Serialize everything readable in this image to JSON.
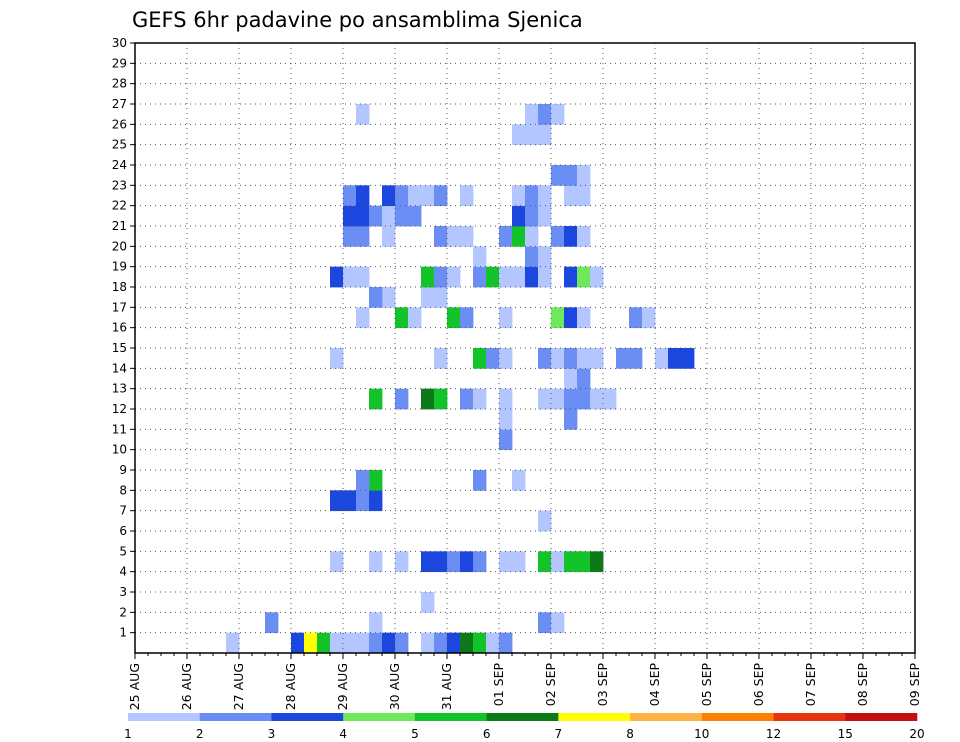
{
  "chart_data": {
    "type": "heatmap",
    "title": "GEFS 6hr padavine po ansamblima Sjenica",
    "xlabel": "",
    "ylabel": "",
    "y_ticks": [
      "1",
      "2",
      "3",
      "4",
      "5",
      "6",
      "7",
      "8",
      "9",
      "10",
      "11",
      "12",
      "13",
      "14",
      "15",
      "16",
      "17",
      "18",
      "19",
      "20",
      "21",
      "22",
      "23",
      "24",
      "25",
      "26",
      "27",
      "28",
      "29",
      "30"
    ],
    "x_ticks": [
      "25 AUG",
      "26 AUG",
      "27 AUG",
      "28 AUG",
      "29 AUG",
      "30 AUG",
      "31 AUG",
      "01 SEP",
      "02 SEP",
      "03 SEP",
      "04 SEP",
      "05 SEP",
      "06 SEP",
      "07 SEP",
      "08 SEP",
      "09 SEP"
    ],
    "x_range": [
      0,
      60
    ],
    "y_range": [
      0,
      30
    ],
    "grid": true,
    "colorbar": {
      "labels": [
        "1",
        "2",
        "3",
        "4",
        "5",
        "6",
        "7",
        "8",
        "10",
        "12",
        "15",
        "20"
      ],
      "colors": [
        "#b3c6ff",
        "#6b8ef5",
        "#1b47de",
        "#6ee85c",
        "#12c42a",
        "#0d7a1a",
        "#ffff00",
        "#ffb347",
        "#ff7f00",
        "#e83510",
        "#c41010",
        "#6e0000"
      ]
    },
    "note_cells": "each cell: [time step (6h index from 25 AUG 00Z), ensemble member, colour class index]",
    "cells": [
      [
        7,
        0,
        0
      ],
      [
        12,
        0,
        2
      ],
      [
        13,
        0,
        6
      ],
      [
        14,
        0,
        4
      ],
      [
        15,
        0,
        0
      ],
      [
        16,
        0,
        0
      ],
      [
        17,
        0,
        0
      ],
      [
        18,
        0,
        1
      ],
      [
        19,
        0,
        2
      ],
      [
        20,
        0,
        1
      ],
      [
        22,
        0,
        0
      ],
      [
        23,
        0,
        1
      ],
      [
        24,
        0,
        2
      ],
      [
        25,
        0,
        5
      ],
      [
        26,
        0,
        4
      ],
      [
        27,
        0,
        0
      ],
      [
        28,
        0,
        1
      ],
      [
        10,
        1,
        1
      ],
      [
        18,
        1,
        0
      ],
      [
        31,
        1,
        1
      ],
      [
        32,
        1,
        0
      ],
      [
        22,
        2,
        0
      ],
      [
        15,
        4,
        0
      ],
      [
        18,
        4,
        0
      ],
      [
        20,
        4,
        0
      ],
      [
        22,
        4,
        2
      ],
      [
        23,
        4,
        2
      ],
      [
        24,
        4,
        1
      ],
      [
        25,
        4,
        2
      ],
      [
        26,
        4,
        1
      ],
      [
        28,
        4,
        0
      ],
      [
        29,
        4,
        0
      ],
      [
        31,
        4,
        4
      ],
      [
        32,
        4,
        0
      ],
      [
        33,
        4,
        4
      ],
      [
        34,
        4,
        4
      ],
      [
        35,
        4,
        5
      ],
      [
        31,
        6,
        0
      ],
      [
        15,
        7,
        2
      ],
      [
        16,
        7,
        2
      ],
      [
        17,
        7,
        1
      ],
      [
        18,
        7,
        2
      ],
      [
        18,
        8,
        4
      ],
      [
        17,
        8,
        1
      ],
      [
        26,
        8,
        1
      ],
      [
        29,
        8,
        0
      ],
      [
        28,
        10,
        1
      ],
      [
        28,
        11,
        0
      ],
      [
        33,
        11,
        1
      ],
      [
        18,
        12,
        4
      ],
      [
        20,
        12,
        1
      ],
      [
        22,
        12,
        5
      ],
      [
        23,
        12,
        4
      ],
      [
        25,
        12,
        1
      ],
      [
        26,
        12,
        0
      ],
      [
        28,
        12,
        0
      ],
      [
        31,
        12,
        0
      ],
      [
        32,
        12,
        0
      ],
      [
        33,
        12,
        1
      ],
      [
        34,
        12,
        1
      ],
      [
        35,
        12,
        0
      ],
      [
        36,
        12,
        0
      ],
      [
        33,
        13,
        0
      ],
      [
        34,
        13,
        1
      ],
      [
        15,
        14,
        0
      ],
      [
        23,
        14,
        0
      ],
      [
        26,
        14,
        4
      ],
      [
        27,
        14,
        1
      ],
      [
        28,
        14,
        0
      ],
      [
        31,
        14,
        1
      ],
      [
        32,
        14,
        0
      ],
      [
        33,
        14,
        1
      ],
      [
        34,
        14,
        0
      ],
      [
        35,
        14,
        0
      ],
      [
        37,
        14,
        1
      ],
      [
        38,
        14,
        1
      ],
      [
        40,
        14,
        0
      ],
      [
        41,
        14,
        2
      ],
      [
        42,
        14,
        2
      ],
      [
        17,
        16,
        0
      ],
      [
        20,
        16,
        4
      ],
      [
        21,
        16,
        0
      ],
      [
        24,
        16,
        4
      ],
      [
        25,
        16,
        1
      ],
      [
        28,
        16,
        0
      ],
      [
        32,
        16,
        3
      ],
      [
        33,
        16,
        2
      ],
      [
        34,
        16,
        0
      ],
      [
        38,
        16,
        1
      ],
      [
        39,
        16,
        0
      ],
      [
        19,
        17,
        0
      ],
      [
        18,
        17,
        1
      ],
      [
        22,
        17,
        0
      ],
      [
        23,
        17,
        0
      ],
      [
        15,
        18,
        2
      ],
      [
        16,
        18,
        0
      ],
      [
        17,
        18,
        0
      ],
      [
        22,
        18,
        4
      ],
      [
        23,
        18,
        1
      ],
      [
        24,
        18,
        0
      ],
      [
        26,
        18,
        1
      ],
      [
        27,
        18,
        4
      ],
      [
        28,
        18,
        0
      ],
      [
        29,
        18,
        0
      ],
      [
        30,
        18,
        2
      ],
      [
        31,
        18,
        0
      ],
      [
        33,
        18,
        2
      ],
      [
        34,
        18,
        3
      ],
      [
        35,
        18,
        0
      ],
      [
        26,
        19,
        0
      ],
      [
        30,
        19,
        1
      ],
      [
        31,
        19,
        0
      ],
      [
        16,
        20,
        1
      ],
      [
        17,
        20,
        1
      ],
      [
        19,
        20,
        0
      ],
      [
        23,
        20,
        1
      ],
      [
        24,
        20,
        0
      ],
      [
        25,
        20,
        0
      ],
      [
        28,
        20,
        1
      ],
      [
        29,
        20,
        4
      ],
      [
        30,
        20,
        0
      ],
      [
        32,
        20,
        1
      ],
      [
        33,
        20,
        2
      ],
      [
        34,
        20,
        0
      ],
      [
        16,
        21,
        2
      ],
      [
        17,
        21,
        2
      ],
      [
        18,
        21,
        1
      ],
      [
        19,
        21,
        0
      ],
      [
        20,
        21,
        1
      ],
      [
        21,
        21,
        1
      ],
      [
        29,
        21,
        2
      ],
      [
        30,
        21,
        1
      ],
      [
        31,
        21,
        0
      ],
      [
        16,
        22,
        1
      ],
      [
        17,
        22,
        2
      ],
      [
        19,
        22,
        2
      ],
      [
        20,
        22,
        1
      ],
      [
        21,
        22,
        0
      ],
      [
        22,
        22,
        0
      ],
      [
        23,
        22,
        1
      ],
      [
        25,
        22,
        0
      ],
      [
        29,
        22,
        0
      ],
      [
        30,
        22,
        1
      ],
      [
        31,
        22,
        0
      ],
      [
        33,
        22,
        0
      ],
      [
        34,
        22,
        0
      ],
      [
        32,
        23,
        1
      ],
      [
        33,
        23,
        1
      ],
      [
        34,
        23,
        0
      ],
      [
        29,
        25,
        0
      ],
      [
        30,
        25,
        0
      ],
      [
        31,
        25,
        0
      ],
      [
        17,
        26,
        0
      ],
      [
        30,
        26,
        0
      ],
      [
        31,
        26,
        1
      ],
      [
        32,
        26,
        0
      ]
    ]
  }
}
